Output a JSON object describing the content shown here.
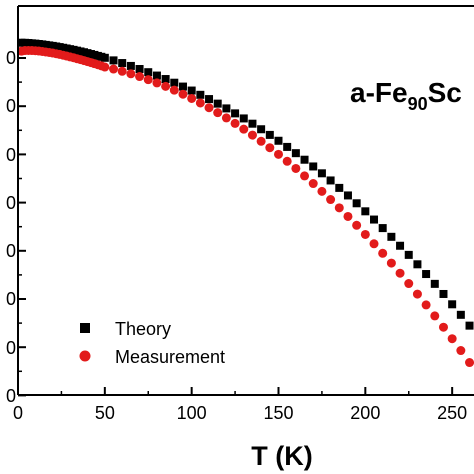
{
  "chart_data": {
    "type": "scatter",
    "title": "",
    "xlabel": "T (K)",
    "ylabel": "",
    "xlim": [
      0,
      262
    ],
    "ylim": [
      0,
      392
    ],
    "x_ticks": [
      "0",
      "50",
      "100",
      "150",
      "200",
      "250"
    ],
    "annotation": {
      "prefix": "a-Fe",
      "subscript": "90",
      "suffix": "Sc"
    },
    "legend_position": "lower-left",
    "series": [
      {
        "name": "Theory",
        "marker": "square",
        "color": "#000000",
        "x": [
          2,
          4,
          6,
          8,
          10,
          12,
          14,
          16,
          18,
          20,
          22,
          24,
          26,
          28,
          30,
          32,
          34,
          36,
          38,
          40,
          42,
          44,
          46,
          48,
          50,
          55,
          60,
          65,
          70,
          75,
          80,
          85,
          90,
          95,
          100,
          105,
          110,
          115,
          120,
          125,
          130,
          135,
          140,
          145,
          150,
          155,
          160,
          165,
          170,
          175,
          180,
          185,
          190,
          195,
          200,
          205,
          210,
          215,
          220,
          225,
          230,
          235,
          240,
          245,
          250,
          255,
          260
        ],
        "y": [
          355,
          354.9,
          354.7,
          354.4,
          354.1,
          353.7,
          353.3,
          352.8,
          352.3,
          351.8,
          351.2,
          350.6,
          349.9,
          349.2,
          348.5,
          347.8,
          347,
          346.2,
          345.4,
          344.5,
          343.6,
          342.7,
          341.7,
          340.8,
          339.8,
          337.2,
          334.5,
          331.6,
          328.5,
          325.3,
          321.9,
          318.4,
          314.7,
          310.8,
          306.8,
          302.5,
          298.2,
          293.6,
          288.8,
          283.8,
          278.7,
          273.4,
          267.8,
          262.1,
          256.2,
          250,
          243.7,
          237.1,
          230.3,
          223.4,
          216.2,
          208.7,
          201.1,
          193.2,
          185.1,
          176.8,
          168.2,
          159.4,
          150.4,
          141.2,
          131.7,
          121.9,
          112,
          101.8,
          91.4,
          80.8,
          69.9
        ]
      },
      {
        "name": "Measurement",
        "marker": "circle",
        "color": "#e21b1b",
        "x": [
          2,
          4,
          6,
          8,
          10,
          12,
          14,
          16,
          18,
          20,
          22,
          24,
          26,
          28,
          30,
          32,
          34,
          36,
          38,
          40,
          42,
          44,
          46,
          48,
          50,
          55,
          60,
          65,
          70,
          75,
          80,
          85,
          90,
          95,
          100,
          105,
          110,
          115,
          120,
          125,
          130,
          135,
          140,
          145,
          150,
          155,
          160,
          165,
          170,
          175,
          180,
          185,
          190,
          195,
          200,
          205,
          210,
          215,
          220,
          225,
          230,
          235,
          240,
          245,
          250,
          255,
          260
        ],
        "y": [
          346.5,
          347.1,
          347.2,
          347.1,
          346.9,
          346.6,
          346.2,
          345.7,
          345.2,
          344.6,
          343.9,
          343.2,
          342.4,
          341.6,
          340.7,
          339.9,
          338.9,
          338,
          337,
          336,
          335,
          333.9,
          332.8,
          331.7,
          330.5,
          328.5,
          326.2,
          323.7,
          320.9,
          317.8,
          314.5,
          311,
          307.2,
          303.1,
          298.8,
          294.3,
          289.5,
          284.5,
          279.2,
          273.7,
          267.9,
          261.9,
          255.7,
          249.2,
          242.5,
          235.5,
          228.3,
          220.8,
          213.1,
          205.2,
          197,
          188.6,
          179.9,
          171,
          161.8,
          152.4,
          142.8,
          132.9,
          122.7,
          112.3,
          101.7,
          90.8,
          79.7,
          68.3,
          56.7,
          44.8,
          32.7
        ]
      }
    ]
  }
}
